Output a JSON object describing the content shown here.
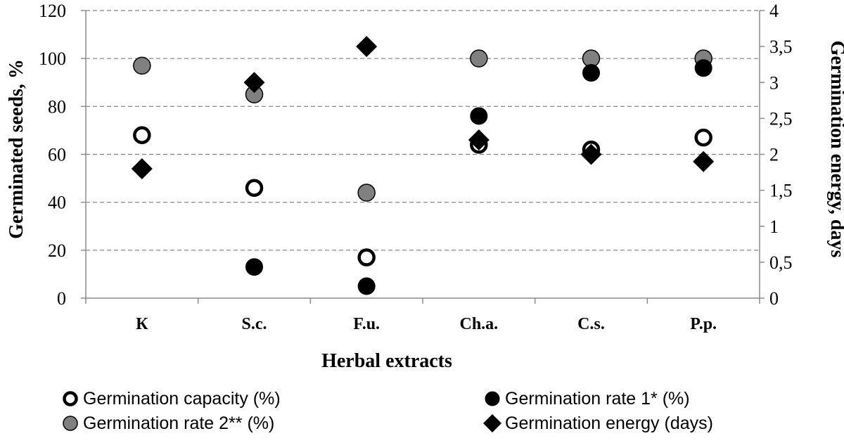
{
  "chart_data": {
    "type": "scatter",
    "title": "",
    "xlabel": "Herbal extracts",
    "ylabel": "Germinated seeds,  %",
    "y2label": "Germination energy, days",
    "categories": [
      "К",
      "S.c.",
      "F.u.",
      "Ch.a.",
      "C.s.",
      "P.p."
    ],
    "ylim": [
      0,
      120
    ],
    "y2lim": [
      0,
      4
    ],
    "yticks": [
      "0",
      "20",
      "40",
      "60",
      "80",
      "100",
      "120"
    ],
    "y2ticks": [
      "0",
      "0,5",
      "1",
      "1,5",
      "2",
      "2,5",
      "3",
      "3,5",
      "4"
    ],
    "grid": true,
    "legend_position": "bottom",
    "series": [
      {
        "name": "Germination capacity (%)",
        "axis": "left",
        "marker": "circle-open",
        "color": "#000000",
        "values": [
          68,
          46,
          17,
          64,
          62,
          67
        ]
      },
      {
        "name": "Germination rate 1* (%)",
        "axis": "left",
        "marker": "circle-filled",
        "color": "#000000",
        "values": [
          null,
          13,
          5,
          76,
          94,
          96
        ]
      },
      {
        "name": "Germination rate 2** (%)",
        "axis": "left",
        "marker": "circle-gray",
        "color": "#808080",
        "values": [
          97,
          85,
          44,
          100,
          100,
          100
        ]
      },
      {
        "name": "Germination energy (days)",
        "axis": "right",
        "marker": "diamond",
        "color": "#000000",
        "values": [
          1.8,
          3.0,
          3.5,
          2.2,
          2.0,
          1.9
        ]
      }
    ]
  }
}
